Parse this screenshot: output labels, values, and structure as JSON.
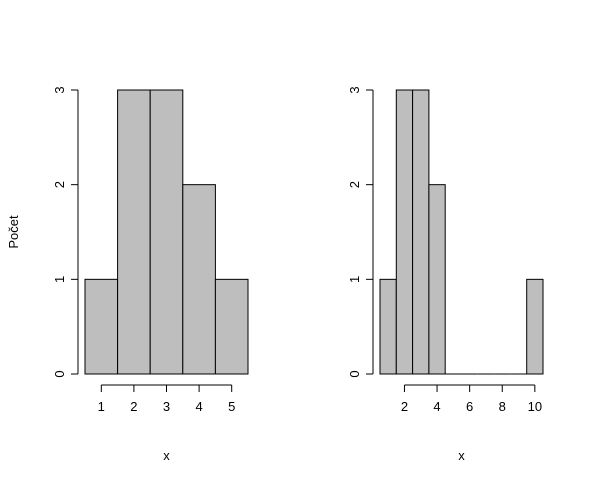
{
  "chart_data": [
    {
      "type": "histogram",
      "bins": [
        [
          0.5,
          1.5
        ],
        [
          1.5,
          2.5
        ],
        [
          2.5,
          3.5
        ],
        [
          3.5,
          4.5
        ],
        [
          4.5,
          5.5
        ]
      ],
      "counts": [
        1,
        3,
        3,
        2,
        1
      ],
      "xlabel": "x",
      "ylabel": "Počet",
      "xticks": [
        1,
        2,
        3,
        4,
        5
      ],
      "yticks": [
        0,
        1,
        2,
        3
      ],
      "xlim": [
        0.5,
        5.5
      ],
      "ylim": [
        0,
        3
      ],
      "grid": false,
      "bar_color": "#bebebe"
    },
    {
      "type": "histogram",
      "bins": [
        [
          0.5,
          1.5
        ],
        [
          1.5,
          2.5
        ],
        [
          2.5,
          3.5
        ],
        [
          3.5,
          4.5
        ],
        [
          4.5,
          5.5
        ],
        [
          5.5,
          6.5
        ],
        [
          6.5,
          7.5
        ],
        [
          7.5,
          8.5
        ],
        [
          8.5,
          9.5
        ],
        [
          9.5,
          10.5
        ]
      ],
      "counts": [
        1,
        3,
        3,
        2,
        0,
        0,
        0,
        0,
        0,
        1
      ],
      "xlabel": "x",
      "ylabel": "",
      "xticks": [
        2,
        4,
        6,
        8,
        10
      ],
      "yticks": [
        0,
        1,
        2,
        3
      ],
      "xlim": [
        0.5,
        10.5
      ],
      "ylim": [
        0,
        3
      ],
      "grid": false,
      "bar_color": "#bebebe"
    }
  ]
}
